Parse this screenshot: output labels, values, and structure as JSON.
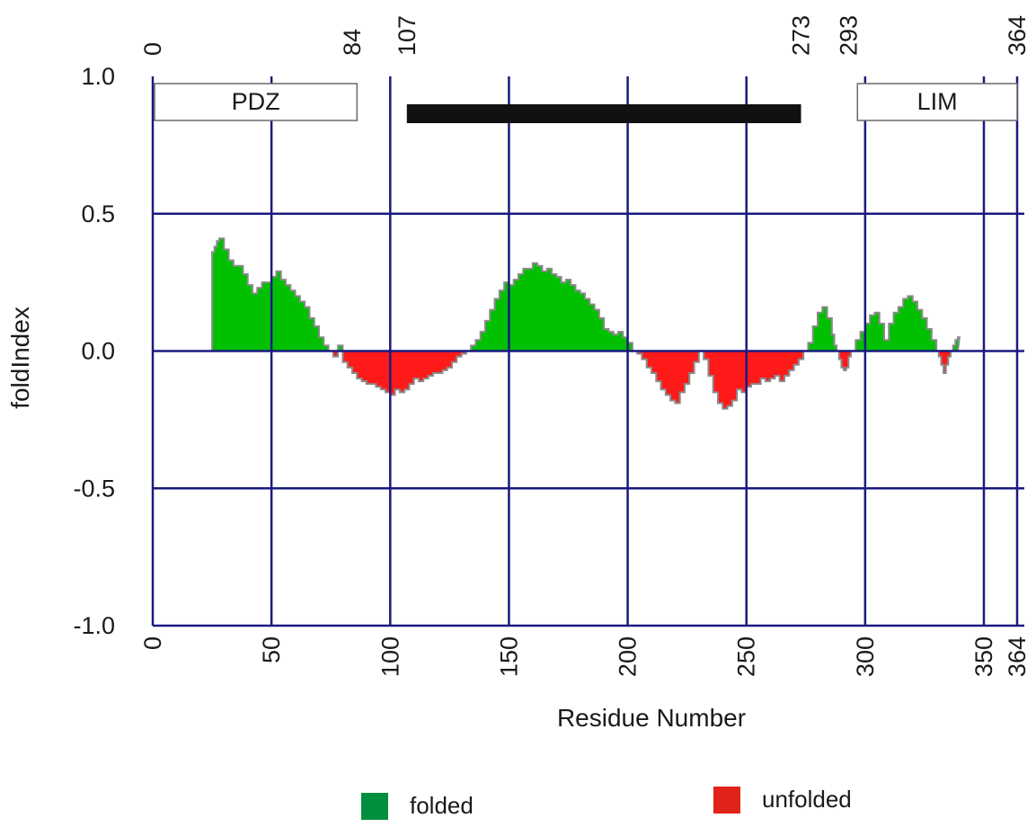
{
  "chart_data": {
    "type": "area",
    "title": "",
    "xlabel": "Residue Number",
    "ylabel": "foldIndex",
    "xlim": [
      0,
      364
    ],
    "ylim": [
      -1.0,
      1.0
    ],
    "grid": true,
    "x_ticks": [
      {
        "value": 0,
        "label": "0"
      },
      {
        "value": 50,
        "label": "50"
      },
      {
        "value": 100,
        "label": "100"
      },
      {
        "value": 150,
        "label": "150"
      },
      {
        "value": 200,
        "label": "200"
      },
      {
        "value": 250,
        "label": "250"
      },
      {
        "value": 300,
        "label": "300"
      },
      {
        "value": 350,
        "label": "350"
      },
      {
        "value": 364,
        "label": "364"
      }
    ],
    "top_ticks": [
      {
        "value": 0,
        "label": "0"
      },
      {
        "value": 84,
        "label": "84"
      },
      {
        "value": 107,
        "label": "107"
      },
      {
        "value": 273,
        "label": "273"
      },
      {
        "value": 293,
        "label": "293"
      },
      {
        "value": 364,
        "label": "364"
      }
    ],
    "y_ticks": [
      {
        "value": 1.0,
        "label": "1.0"
      },
      {
        "value": 0.5,
        "label": "0.5"
      },
      {
        "value": 0.0,
        "label": "0.0"
      },
      {
        "value": -0.5,
        "label": "-0.5"
      },
      {
        "value": -1.0,
        "label": "-1.0"
      }
    ],
    "domains": [
      {
        "label": "PDZ",
        "start": 0,
        "end": 86
      },
      {
        "label": "LIM",
        "start": 296,
        "end": 364
      }
    ],
    "region_bar": {
      "start": 107,
      "end": 273
    },
    "series": [
      {
        "name": "folded",
        "color": "#00c000",
        "legend_color": "#008f3c"
      },
      {
        "name": "unfolded",
        "color": "#ff1a1a",
        "legend_color": "#e0241b"
      }
    ],
    "profile": {
      "x": [
        24,
        25,
        26,
        27,
        28,
        30,
        32,
        34,
        36,
        38,
        40,
        42,
        44,
        46,
        48,
        50,
        52,
        54,
        56,
        58,
        60,
        62,
        64,
        66,
        68,
        70,
        72,
        74,
        76,
        78,
        80,
        82,
        84,
        86,
        88,
        90,
        92,
        94,
        96,
        98,
        100,
        102,
        104,
        106,
        108,
        110,
        112,
        114,
        116,
        118,
        120,
        122,
        124,
        126,
        128,
        130,
        132,
        134,
        136,
        138,
        140,
        142,
        144,
        146,
        148,
        150,
        152,
        154,
        156,
        158,
        160,
        162,
        164,
        166,
        168,
        170,
        172,
        174,
        176,
        178,
        180,
        182,
        184,
        186,
        188,
        190,
        192,
        194,
        196,
        198,
        200,
        202,
        204,
        206,
        208,
        210,
        212,
        214,
        216,
        218,
        220,
        222,
        224,
        226,
        228,
        230,
        232,
        234,
        236,
        238,
        240,
        242,
        244,
        246,
        248,
        250,
        252,
        254,
        256,
        258,
        260,
        262,
        264,
        266,
        268,
        270,
        272,
        274,
        276,
        278,
        280,
        282,
        284,
        286,
        287,
        288,
        289,
        290,
        291,
        292,
        293,
        294,
        296,
        298,
        300,
        302,
        304,
        306,
        308,
        310,
        312,
        314,
        316,
        318,
        320,
        322,
        324,
        326,
        328,
        330,
        331,
        332,
        333,
        334,
        335,
        336,
        337,
        338,
        339
      ],
      "y": [
        0.0,
        0.36,
        0.38,
        0.4,
        0.41,
        0.37,
        0.33,
        0.31,
        0.31,
        0.28,
        0.24,
        0.21,
        0.23,
        0.25,
        0.25,
        0.27,
        0.29,
        0.26,
        0.24,
        0.22,
        0.2,
        0.18,
        0.16,
        0.12,
        0.09,
        0.05,
        0.02,
        0.0,
        -0.02,
        0.02,
        -0.04,
        -0.06,
        -0.08,
        -0.1,
        -0.11,
        -0.12,
        -0.12,
        -0.13,
        -0.14,
        -0.15,
        -0.16,
        -0.14,
        -0.15,
        -0.14,
        -0.12,
        -0.1,
        -0.11,
        -0.1,
        -0.09,
        -0.08,
        -0.08,
        -0.07,
        -0.06,
        -0.04,
        -0.02,
        -0.01,
        0.0,
        0.02,
        0.04,
        0.07,
        0.11,
        0.15,
        0.19,
        0.22,
        0.25,
        0.24,
        0.26,
        0.28,
        0.3,
        0.3,
        0.32,
        0.31,
        0.29,
        0.3,
        0.28,
        0.27,
        0.25,
        0.26,
        0.24,
        0.22,
        0.21,
        0.19,
        0.17,
        0.15,
        0.12,
        0.08,
        0.07,
        0.06,
        0.07,
        0.05,
        0.03,
        0.0,
        -0.01,
        -0.03,
        -0.06,
        -0.08,
        -0.11,
        -0.14,
        -0.16,
        -0.18,
        -0.19,
        -0.15,
        -0.12,
        -0.08,
        -0.04,
        0.0,
        -0.03,
        -0.09,
        -0.15,
        -0.19,
        -0.21,
        -0.2,
        -0.18,
        -0.14,
        -0.15,
        -0.13,
        -0.12,
        -0.12,
        -0.1,
        -0.11,
        -0.1,
        -0.09,
        -0.11,
        -0.09,
        -0.07,
        -0.05,
        -0.03,
        0.0,
        0.03,
        0.09,
        0.14,
        0.16,
        0.12,
        0.06,
        0.02,
        0.0,
        -0.03,
        -0.06,
        -0.07,
        -0.06,
        -0.02,
        0.0,
        0.04,
        0.07,
        0.1,
        0.13,
        0.14,
        0.1,
        0.04,
        0.1,
        0.14,
        0.16,
        0.19,
        0.2,
        0.18,
        0.15,
        0.12,
        0.08,
        0.04,
        0.0,
        -0.02,
        -0.05,
        -0.08,
        -0.05,
        -0.02,
        0.0,
        0.02,
        0.04,
        0.05
      ]
    },
    "legend": [
      {
        "label": "folded",
        "color": "#008f3c"
      },
      {
        "label": "unfolded",
        "color": "#e0241b"
      }
    ]
  }
}
